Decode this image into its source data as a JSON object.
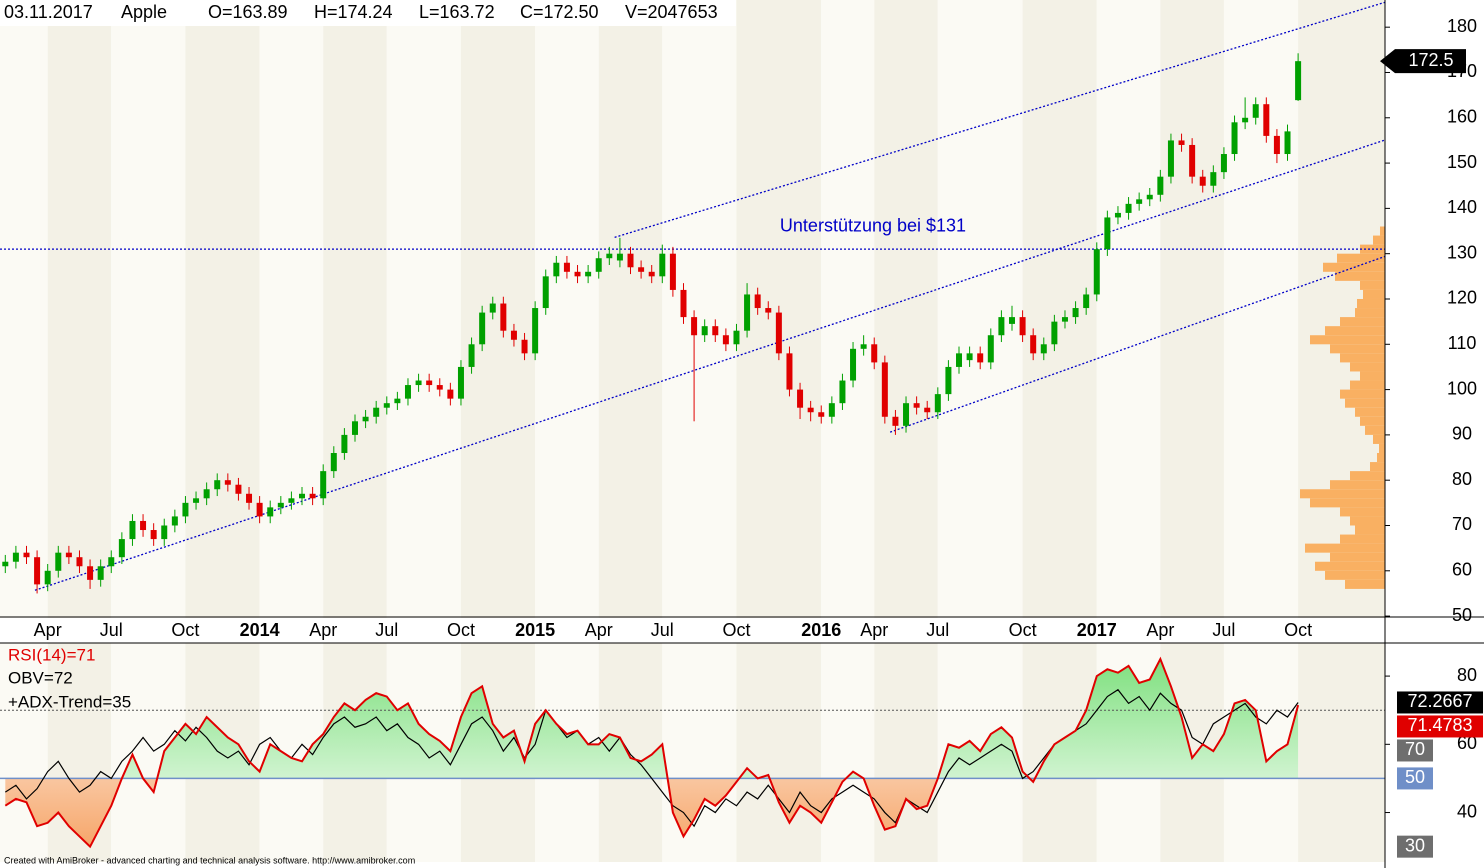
{
  "header": {
    "date": "03.11.2017",
    "symbol": "Apple",
    "quote": [
      "O=163.89",
      "H=174.24",
      "L=163.72",
      "C=172.50",
      "V=2047653"
    ]
  },
  "chart_data": [
    {
      "type": "candlestick",
      "open": [
        61,
        62,
        64,
        63,
        57,
        60,
        64,
        63,
        61,
        58,
        61,
        63,
        67,
        71,
        69,
        67,
        70,
        72,
        75,
        76,
        78,
        80,
        79,
        77,
        75,
        72,
        74,
        75,
        76,
        77,
        76,
        82,
        86,
        90,
        93,
        94,
        96,
        97,
        98,
        101,
        102,
        101,
        100,
        98,
        105,
        110,
        117,
        119,
        113,
        111,
        108,
        118,
        125,
        128,
        126,
        125,
        126,
        129,
        128.5,
        130,
        127,
        126,
        125,
        130,
        122,
        116,
        112,
        114,
        112,
        110,
        113,
        121,
        118,
        117,
        108,
        100,
        96,
        95,
        94,
        97,
        102,
        109,
        110,
        106,
        94,
        92,
        97,
        96,
        95,
        99,
        105,
        106.5,
        108,
        106,
        112,
        114.5,
        116,
        112,
        108,
        110,
        115,
        116,
        118,
        121,
        131,
        138,
        139,
        141,
        142,
        143,
        147,
        155,
        154,
        147,
        145,
        148,
        152,
        159,
        160,
        163,
        156,
        152,
        163.89
      ],
      "high": [
        63.5,
        65.5,
        65.5,
        64.5,
        61.5,
        65.5,
        65.5,
        64.5,
        62.5,
        62.5,
        64.5,
        68.5,
        72.5,
        72.5,
        70.5,
        71.5,
        73.5,
        76.5,
        77.5,
        79.5,
        81.5,
        81.5,
        80.5,
        78.5,
        76.5,
        75.5,
        76.5,
        77.5,
        78.5,
        78.5,
        83.5,
        87.5,
        91.5,
        94.5,
        95.5,
        97.5,
        98.5,
        99.5,
        102.5,
        103.5,
        103.5,
        102.5,
        101.5,
        106.5,
        111.5,
        118.5,
        120.5,
        120.5,
        114.5,
        112.5,
        119.5,
        126.5,
        129.5,
        129.5,
        127.5,
        127.5,
        130.5,
        131.5,
        133.5,
        131.5,
        128.5,
        127.5,
        132,
        131.5,
        123.5,
        117.5,
        115.5,
        115.5,
        113.5,
        114.5,
        123.5,
        122.5,
        119.5,
        118.5,
        109.5,
        101.5,
        97.5,
        96.5,
        98.5,
        103.5,
        110.5,
        112,
        111.5,
        107.5,
        95.5,
        98.5,
        98.5,
        97.5,
        100.5,
        106.5,
        109.5,
        109.5,
        109.5,
        113.5,
        117.5,
        118.5,
        117.5,
        113.5,
        111.5,
        116.5,
        117.5,
        119.5,
        122.5,
        132.5,
        139.5,
        140.5,
        142.5,
        143.5,
        144.5,
        148.5,
        156.5,
        156.5,
        155.5,
        148.5,
        149.5,
        153.5,
        160.5,
        164.5,
        164.5,
        164.5,
        157.5,
        158.5,
        174.24
      ],
      "low": [
        59.5,
        60.5,
        61.5,
        55,
        55.5,
        58.5,
        61.5,
        59.5,
        56,
        56.5,
        59.5,
        61.5,
        65.5,
        67.5,
        65.5,
        65.5,
        68.5,
        70.5,
        73.5,
        74.5,
        76.5,
        77.5,
        75.5,
        73.5,
        70.5,
        70.5,
        72.5,
        73.5,
        74.5,
        74.5,
        74.5,
        80.5,
        84.5,
        88.5,
        91.5,
        92.5,
        94.5,
        95.5,
        96.5,
        99.5,
        99.5,
        98.5,
        96.5,
        96.5,
        103.5,
        108.5,
        115.5,
        111.5,
        109.5,
        106.5,
        106.5,
        116.5,
        123.5,
        124.5,
        123.5,
        123.5,
        124.5,
        127.5,
        127,
        125.5,
        124.5,
        123.5,
        123.5,
        120.5,
        114.5,
        93,
        110.5,
        110.5,
        108.5,
        108.5,
        111.5,
        116.5,
        115.5,
        106.5,
        98.5,
        93.5,
        93,
        92.5,
        92.5,
        95.5,
        100.5,
        107.5,
        104.5,
        92.5,
        90,
        90.5,
        94.5,
        93.5,
        93.5,
        97.5,
        103.5,
        105,
        104.5,
        104.5,
        110.5,
        113,
        110.5,
        106.5,
        106.5,
        108.5,
        113.5,
        114.5,
        116.5,
        119.5,
        129.5,
        136.5,
        137.5,
        139.5,
        140.5,
        141.5,
        145.5,
        152.5,
        145.5,
        143.5,
        143.5,
        146.5,
        150.5,
        157.5,
        158.5,
        154.5,
        150,
        150.5,
        163.72
      ],
      "close": [
        62,
        64,
        63,
        57,
        60,
        64,
        63,
        61,
        58,
        61,
        63,
        67,
        71,
        69,
        67,
        70,
        72,
        75,
        76,
        78,
        80,
        79,
        77,
        75,
        72,
        74,
        75,
        76,
        77,
        76,
        82,
        86,
        90,
        93,
        94,
        96,
        97,
        98,
        101,
        102,
        101,
        100,
        98,
        105,
        110,
        117,
        119,
        113,
        111,
        108,
        118,
        125,
        128,
        126,
        125,
        126,
        129,
        130,
        130,
        127,
        126,
        125,
        130,
        122,
        116,
        112,
        114,
        112,
        110,
        113,
        121,
        118,
        117,
        108,
        100,
        96,
        95,
        94,
        97,
        102,
        109,
        110,
        106,
        94,
        92,
        97,
        96,
        95,
        99,
        105,
        108,
        108,
        106,
        112,
        116,
        116,
        112,
        108,
        110,
        115,
        116,
        118,
        121,
        131,
        138,
        139,
        141,
        142,
        143,
        147,
        155,
        154,
        147,
        145,
        148,
        152,
        159,
        160,
        163,
        156,
        152,
        157,
        172.5
      ],
      "up_color": "#00a000",
      "down_color": "#e00000",
      "xlim": [
        -0.5,
        130.2
      ],
      "xticks": [
        {
          "value": 4,
          "label": "Apr"
        },
        {
          "value": 10,
          "label": "Jul"
        },
        {
          "value": 17,
          "label": "Oct"
        },
        {
          "value": 24,
          "label": "2014"
        },
        {
          "value": 30,
          "label": "Apr"
        },
        {
          "value": 36,
          "label": "Jul"
        },
        {
          "value": 43,
          "label": "Oct"
        },
        {
          "value": 50,
          "label": "2015"
        },
        {
          "value": 56,
          "label": "Apr"
        },
        {
          "value": 62,
          "label": "Jul"
        },
        {
          "value": 69,
          "label": "Oct"
        },
        {
          "value": 77,
          "label": "2016"
        },
        {
          "value": 82,
          "label": "Apr"
        },
        {
          "value": 88,
          "label": "Jul"
        },
        {
          "value": 96,
          "label": "Oct"
        },
        {
          "value": 103,
          "label": "2017"
        },
        {
          "value": 109,
          "label": "Apr"
        },
        {
          "value": 115,
          "label": "Jul"
        },
        {
          "value": 122,
          "label": "Oct"
        }
      ],
      "ylim": [
        49.8,
        186
      ],
      "yticks": [
        50,
        60,
        70,
        80,
        90,
        100,
        110,
        120,
        130,
        140,
        150,
        160,
        170,
        180
      ],
      "annotations": [
        {
          "text": "Unterstützung bei $131",
          "x": 73.1,
          "y": 136,
          "color": "#0000c8"
        }
      ],
      "line_color": "#0000c8",
      "trend_lines": [
        {
          "x": [
            57.5,
            130.2
          ],
          "y": [
            133.6,
            185.5
          ]
        },
        {
          "x": [
            2.8,
            130.2
          ],
          "y": [
            55.7,
            155.1
          ]
        },
        {
          "x": [
            83.5,
            130.2
          ],
          "y": [
            90.6,
            129.4
          ]
        },
        {
          "x": [
            -0.5,
            130.2
          ],
          "y": [
            131,
            131
          ]
        }
      ],
      "volume_profile": {
        "color": "#f9b062",
        "prices": [
          57,
          59,
          61,
          63,
          65,
          67,
          69,
          71,
          73,
          75,
          77,
          79,
          81,
          83,
          85,
          87,
          89,
          91,
          93,
          95,
          97,
          99,
          101,
          103,
          105,
          107,
          109,
          111,
          113,
          115,
          117,
          119,
          121,
          123,
          125,
          127,
          129,
          131,
          133,
          135
        ],
        "values": [
          40,
          60,
          70,
          55,
          80,
          45,
          30,
          35,
          45,
          75,
          85,
          55,
          35,
          15,
          8,
          6,
          12,
          20,
          25,
          30,
          40,
          45,
          35,
          25,
          35,
          45,
          55,
          75,
          60,
          45,
          30,
          28,
          22,
          25,
          50,
          62,
          48,
          25,
          12,
          5
        ]
      }
    },
    {
      "type": "indicator",
      "series": [
        {
          "name": "RSI(14)=71",
          "color": "#e00000",
          "values": [
            42,
            44,
            43,
            36,
            37,
            40,
            36,
            33,
            30,
            36,
            42,
            50,
            57,
            50,
            46,
            58,
            62,
            66,
            63,
            68,
            65,
            62,
            60,
            55,
            52,
            60,
            58,
            56,
            55,
            60,
            63,
            68,
            72,
            70,
            73,
            75,
            74,
            70,
            72,
            66,
            63,
            61,
            58,
            68,
            75,
            77,
            66,
            62,
            64,
            55,
            66,
            70,
            66,
            63,
            64,
            60,
            60,
            63,
            62,
            56,
            55,
            57,
            60,
            40,
            33,
            38,
            44,
            42,
            45,
            49,
            53,
            50,
            51,
            43,
            37,
            42,
            40,
            37,
            43,
            49,
            52,
            50,
            42,
            35,
            36,
            44,
            41,
            42,
            50,
            60,
            59,
            61,
            58,
            63,
            65,
            62,
            52,
            49,
            55,
            60,
            62,
            64,
            70,
            80,
            82,
            81,
            83,
            78,
            79,
            85,
            77,
            68,
            56,
            60,
            58,
            63,
            72,
            73,
            70,
            55,
            58,
            60,
            71.4783
          ]
        },
        {
          "name": "OBV=72",
          "color": "#000000",
          "values": [
            46,
            48,
            44,
            47,
            52,
            55,
            50,
            46,
            48,
            52,
            50,
            55,
            58,
            62,
            58,
            60,
            64,
            61,
            65,
            62,
            58,
            56,
            58,
            54,
            60,
            62,
            58,
            56,
            60,
            57,
            62,
            66,
            68,
            65,
            66,
            68,
            64,
            66,
            62,
            60,
            56,
            58,
            54,
            60,
            66,
            68,
            64,
            58,
            62,
            56,
            60,
            70,
            66,
            62,
            64,
            60,
            62,
            58,
            62,
            57,
            54,
            50,
            46,
            42,
            40,
            36,
            42,
            40,
            44,
            42,
            46,
            44,
            48,
            44,
            40,
            46,
            42,
            40,
            44,
            46,
            48,
            46,
            44,
            40,
            37,
            44,
            42,
            40,
            46,
            52,
            56,
            54,
            56,
            58,
            60,
            58,
            50,
            52,
            56,
            60,
            62,
            64,
            66,
            70,
            74,
            76,
            72,
            74,
            70,
            75,
            72,
            70,
            62,
            60,
            66,
            68,
            70,
            72,
            68,
            66,
            70,
            68,
            72.2667
          ]
        }
      ],
      "legend_extra": "+ADX-Trend=35",
      "ylim": [
        25.5,
        89.7
      ],
      "yticks": [
        40,
        60,
        80
      ],
      "levels": [
        {
          "value": 70,
          "color": "#6e6e6e",
          "line": "dotted"
        },
        {
          "value": 50,
          "color": "#6f8fc8",
          "line": "solid"
        },
        {
          "value": 30,
          "color": "#6e6e6e",
          "line": "none"
        }
      ]
    }
  ],
  "footer": "Created with AmiBroker - advanced charting and technical analysis software. http://www.amibroker.com"
}
